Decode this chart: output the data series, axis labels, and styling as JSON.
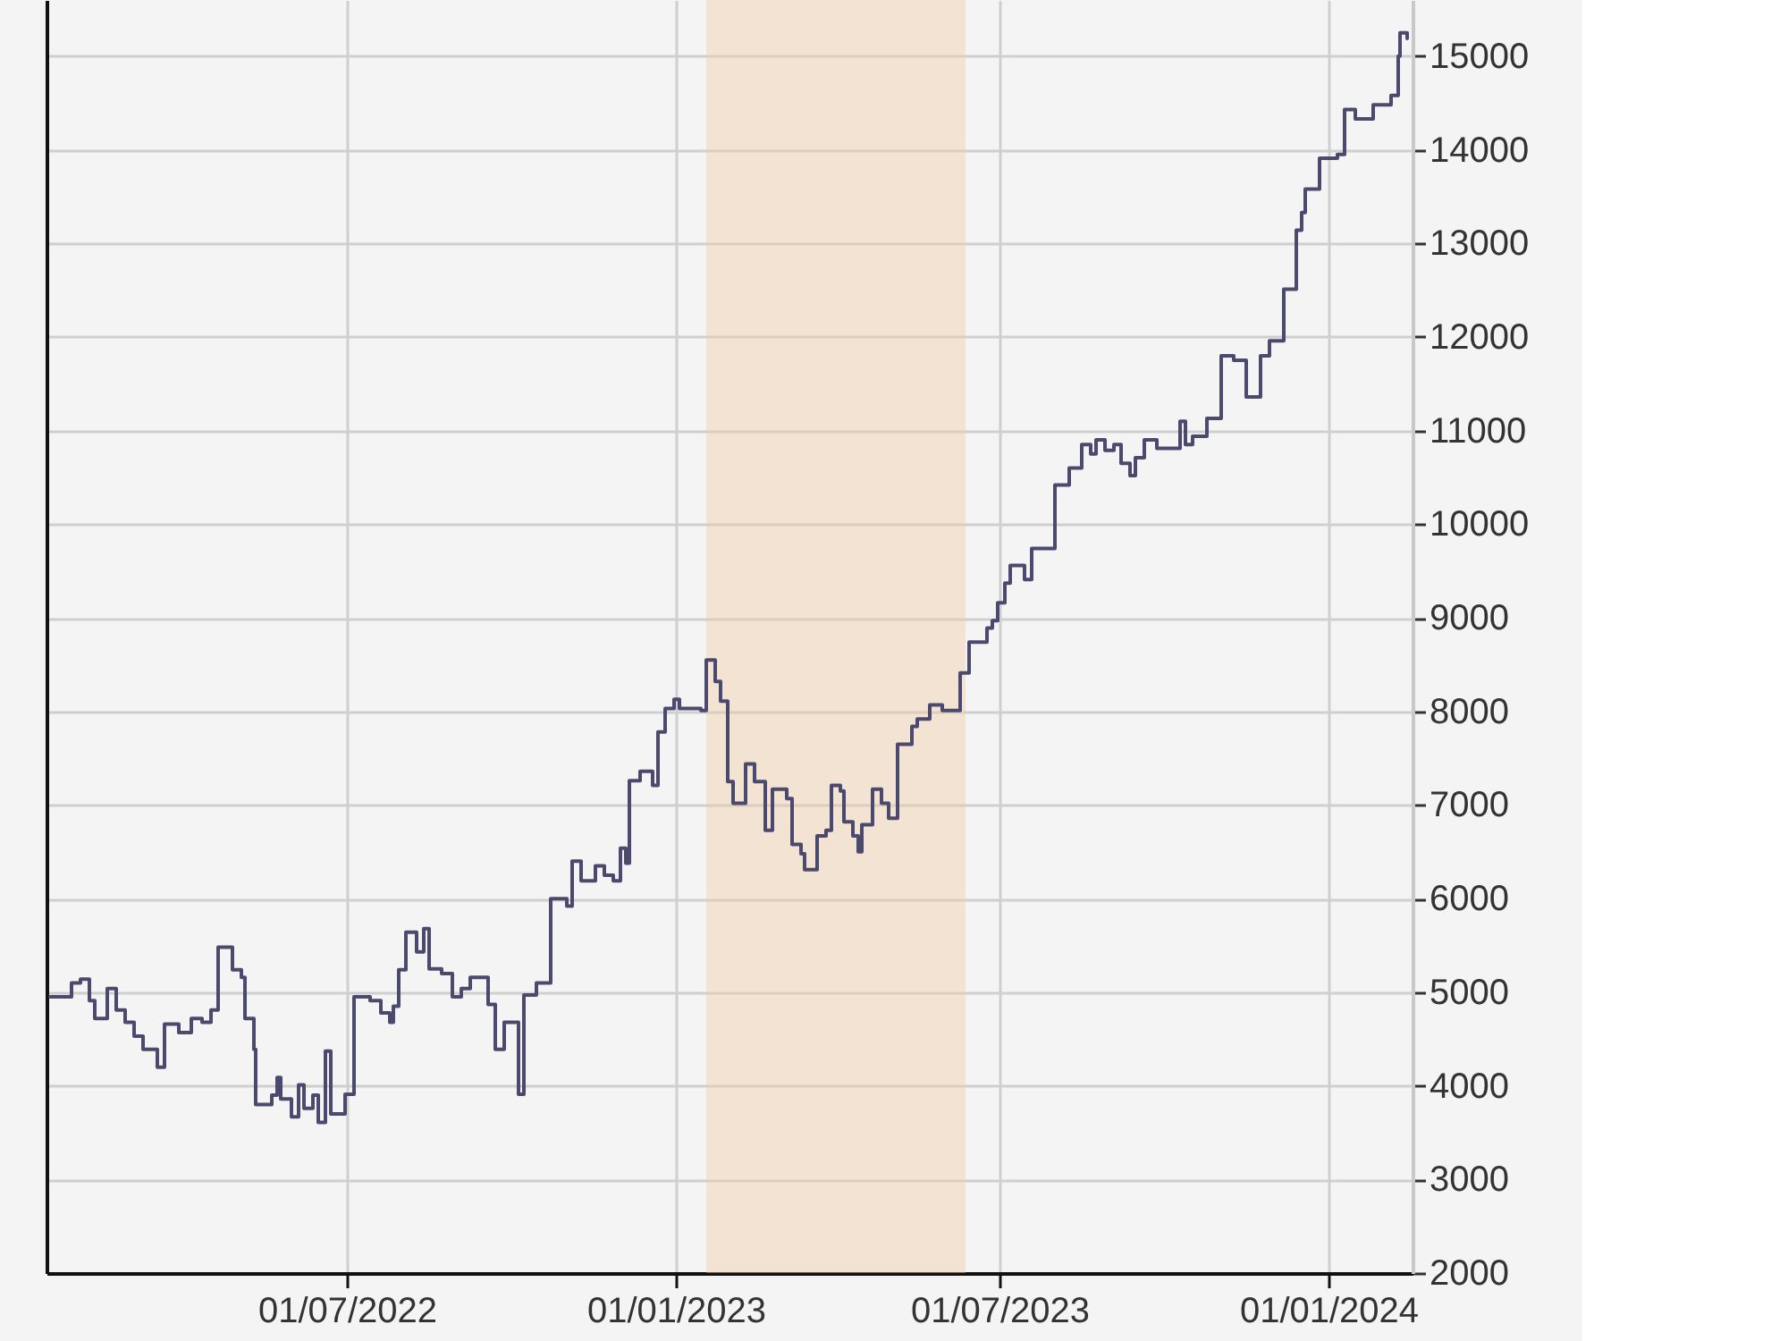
{
  "chart_data": {
    "type": "step",
    "color": "#4b4a6e",
    "x": [
      "2022-01-16",
      "2022-01-28",
      "2022-02-02",
      "2022-02-07",
      "2022-02-10",
      "2022-02-17",
      "2022-02-22",
      "2022-02-27",
      "2022-03-04",
      "2022-03-09",
      "2022-03-17",
      "2022-03-21",
      "2022-03-29",
      "2022-04-05",
      "2022-04-11",
      "2022-04-16",
      "2022-04-20",
      "2022-04-28",
      "2022-05-03",
      "2022-05-05",
      "2022-05-10",
      "2022-05-11",
      "2022-05-20",
      "2022-05-23",
      "2022-05-25",
      "2022-05-31",
      "2022-06-04",
      "2022-06-07",
      "2022-06-12",
      "2022-06-15",
      "2022-06-19",
      "2022-06-22",
      "2022-06-30",
      "2022-07-05",
      "2022-07-14",
      "2022-07-20",
      "2022-07-25",
      "2022-07-27",
      "2022-07-30",
      "2022-08-03",
      "2022-08-09",
      "2022-08-13",
      "2022-08-16",
      "2022-08-23",
      "2022-08-29",
      "2022-09-03",
      "2022-09-08",
      "2022-09-18",
      "2022-09-22",
      "2022-09-27",
      "2022-10-05",
      "2022-10-08",
      "2022-10-15",
      "2022-10-23",
      "2022-11-01",
      "2022-11-04",
      "2022-11-09",
      "2022-11-17",
      "2022-11-22",
      "2022-11-27",
      "2022-12-01",
      "2022-12-04",
      "2022-12-06",
      "2022-12-12",
      "2022-12-19",
      "2022-12-22",
      "2022-12-26",
      "2022-12-31",
      "2023-01-03",
      "2023-01-15",
      "2023-01-18",
      "2023-01-23",
      "2023-01-26",
      "2023-01-30",
      "2023-02-02",
      "2023-02-09",
      "2023-02-14",
      "2023-02-20",
      "2023-02-24",
      "2023-03-04",
      "2023-03-07",
      "2023-03-12",
      "2023-03-14",
      "2023-03-21",
      "2023-03-26",
      "2023-03-29",
      "2023-04-03",
      "2023-04-05",
      "2023-04-10",
      "2023-04-13",
      "2023-04-15",
      "2023-04-21",
      "2023-04-26",
      "2023-04-30",
      "2023-05-05",
      "2023-05-13",
      "2023-05-16",
      "2023-05-23",
      "2023-05-30",
      "2023-06-09",
      "2023-06-14",
      "2023-06-24",
      "2023-06-27",
      "2023-06-30",
      "2023-07-04",
      "2023-07-07",
      "2023-07-15",
      "2023-07-19",
      "2023-08-01",
      "2023-08-09",
      "2023-08-16",
      "2023-08-21",
      "2023-08-24",
      "2023-08-29",
      "2023-09-03",
      "2023-09-07",
      "2023-09-12",
      "2023-09-15",
      "2023-09-20",
      "2023-09-27",
      "2023-10-10",
      "2023-10-13",
      "2023-10-17",
      "2023-10-25",
      "2023-11-02",
      "2023-11-09",
      "2023-11-16",
      "2023-11-24",
      "2023-11-29",
      "2023-12-07",
      "2023-12-14",
      "2023-12-17",
      "2023-12-19",
      "2023-12-27",
      "2024-01-06",
      "2024-01-10",
      "2024-01-16",
      "2024-01-26",
      "2024-02-05",
      "2024-02-09",
      "2024-02-10",
      "2024-02-14"
    ],
    "values": [
      4950,
      5100,
      5140,
      4910,
      4720,
      5040,
      4810,
      4680,
      4530,
      4390,
      4200,
      4660,
      4570,
      4720,
      4680,
      4810,
      5480,
      5240,
      5160,
      4720,
      4390,
      3800,
      3900,
      4090,
      3860,
      3670,
      4010,
      3760,
      3900,
      3610,
      4370,
      3700,
      3910,
      4950,
      4910,
      4780,
      4680,
      4850,
      5240,
      5640,
      5430,
      5680,
      5250,
      5200,
      4950,
      5040,
      5160,
      4870,
      4390,
      4680,
      3910,
      4970,
      5100,
      6000,
      5920,
      6400,
      6190,
      6350,
      6250,
      6190,
      6540,
      6380,
      7260,
      7360,
      7210,
      7780,
      8030,
      8130,
      8030,
      8010,
      8550,
      8320,
      8110,
      7250,
      7020,
      7440,
      7250,
      6730,
      7170,
      7070,
      6580,
      6480,
      6310,
      6670,
      6730,
      7210,
      7150,
      6820,
      6670,
      6500,
      6790,
      7170,
      7020,
      6860,
      7650,
      7840,
      7920,
      8070,
      8010,
      8410,
      8740,
      8890,
      8970,
      9160,
      9370,
      9560,
      9410,
      9740,
      10420,
      10600,
      10850,
      10750,
      10900,
      10790,
      10850,
      10650,
      10520,
      10710,
      10900,
      10810,
      11100,
      10850,
      10940,
      11130,
      11800,
      11750,
      11360,
      11800,
      11960,
      12510,
      13140,
      13330,
      13580,
      13910,
      13950,
      14430,
      14330,
      14480,
      14580,
      15000,
      15250,
      15190
    ],
    "xlim": [
      "2022-01-14",
      "2024-02-17"
    ],
    "xticks": [
      {
        "value": "2022-07-01",
        "label": "01/07/2022"
      },
      {
        "value": "2023-01-01",
        "label": "01/01/2023"
      },
      {
        "value": "2023-07-01",
        "label": "01/07/2023"
      },
      {
        "value": "2024-01-01",
        "label": "01/01/2024"
      }
    ],
    "ylim": [
      2000,
      15600
    ],
    "yticks": [
      2000,
      3000,
      4000,
      5000,
      6000,
      7000,
      8000,
      9000,
      10000,
      11000,
      12000,
      13000,
      14000,
      15000
    ],
    "grid": true,
    "bands": [
      {
        "axis": "x",
        "from": "2023-01-18",
        "to": "2023-06-12",
        "color": "#f2caa2"
      }
    ]
  }
}
